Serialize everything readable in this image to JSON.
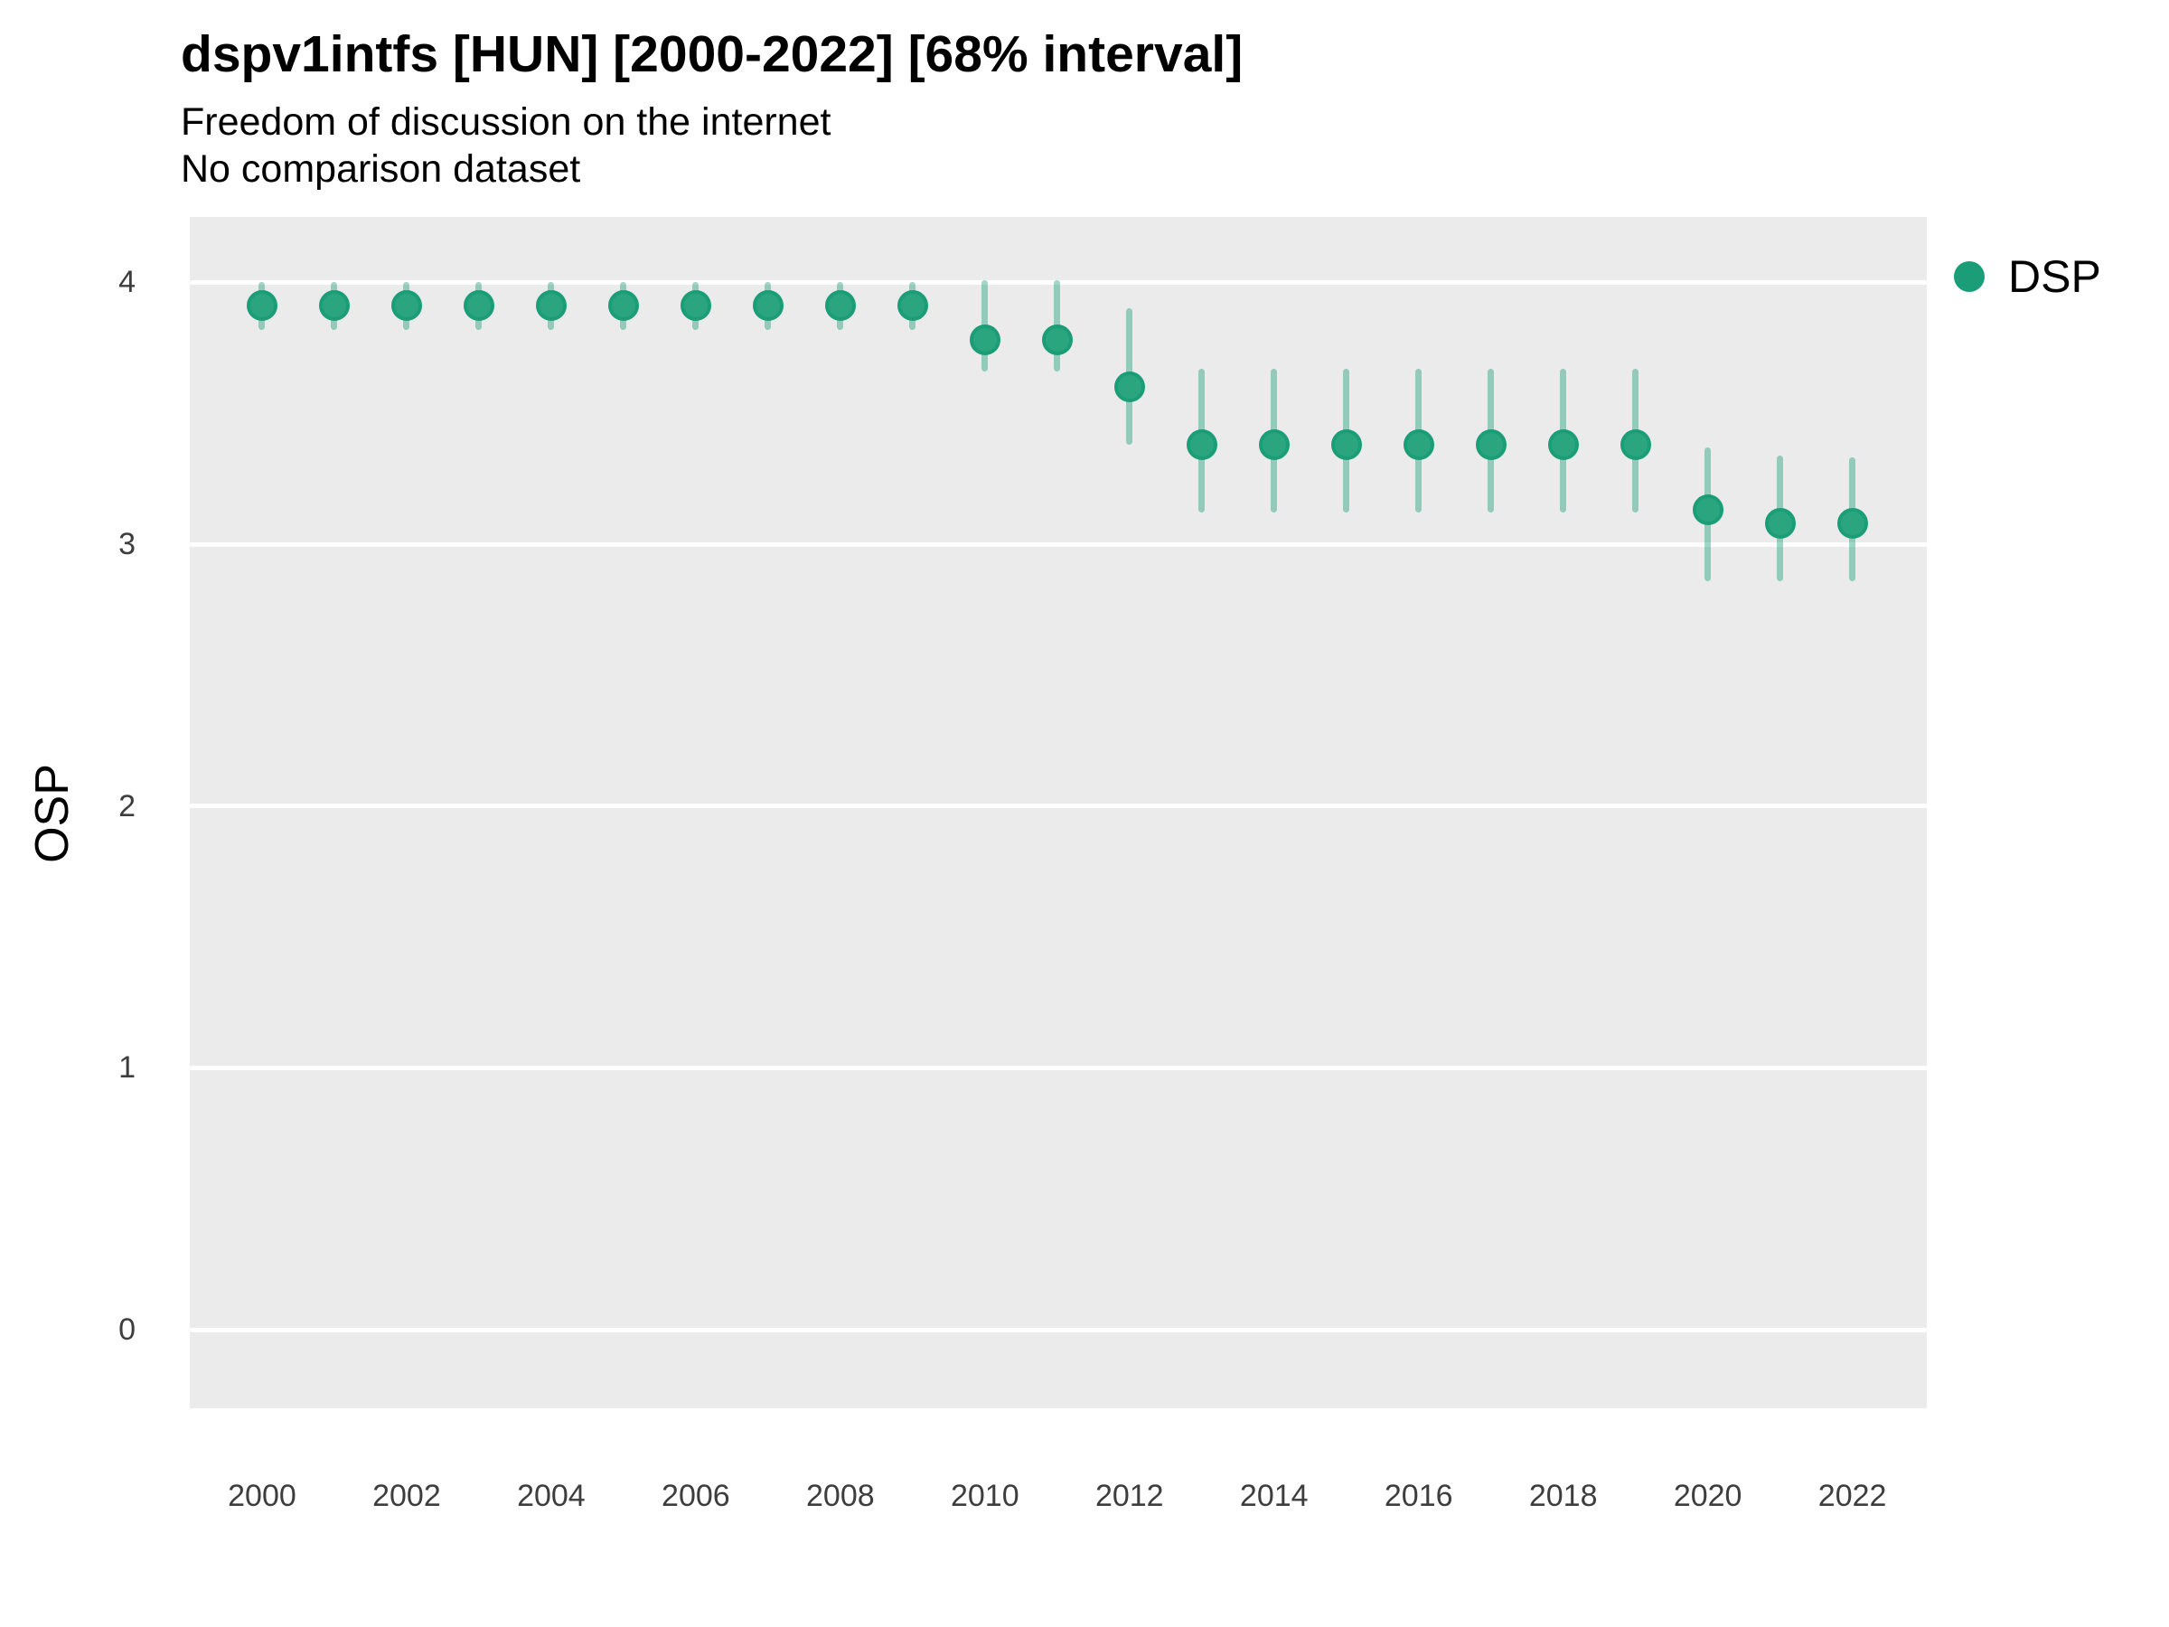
{
  "colors": {
    "panel_background": "#EBEBEB",
    "gridline": "#FFFFFF",
    "point_fill": "#2BA57E",
    "point_stroke": "#1B9E77",
    "errorbar": "rgba(27,158,119,0.42)",
    "tick_text": "#3D3D3D",
    "title_text": "#000000"
  },
  "chart_data": {
    "type": "scatter",
    "title": "dspv1intfs [HUN] [2000-2022] [68% interval]",
    "subtitle": "Freedom of discussion on the internet",
    "subtitle2": "No comparison dataset",
    "xlabel": "",
    "ylabel": "OSP",
    "interval": "68%",
    "legend_position": "right-top",
    "grid": "horizontal-major-only",
    "x_ticks": [
      2000,
      2002,
      2004,
      2006,
      2008,
      2010,
      2012,
      2014,
      2016,
      2018,
      2020,
      2022
    ],
    "y_ticks": [
      0,
      1,
      2,
      3,
      4
    ],
    "xlim": [
      1999,
      2023.03
    ],
    "ylim": [
      -0.3,
      4.25
    ],
    "series": [
      {
        "name": "DSP",
        "color": "#1B9E77",
        "x": [
          2000,
          2001,
          2002,
          2003,
          2004,
          2005,
          2006,
          2007,
          2008,
          2009,
          2010,
          2011,
          2012,
          2013,
          2014,
          2015,
          2016,
          2017,
          2018,
          2019,
          2020,
          2021,
          2022
        ],
        "y": [
          3.91,
          3.91,
          3.91,
          3.91,
          3.91,
          3.91,
          3.91,
          3.91,
          3.91,
          3.91,
          3.78,
          3.78,
          3.6,
          3.38,
          3.38,
          3.38,
          3.38,
          3.38,
          3.38,
          3.38,
          3.13,
          3.08,
          3.08
        ],
        "y_low": [
          3.82,
          3.82,
          3.82,
          3.82,
          3.82,
          3.82,
          3.82,
          3.82,
          3.82,
          3.82,
          3.66,
          3.66,
          3.38,
          3.12,
          3.12,
          3.12,
          3.12,
          3.12,
          3.12,
          3.12,
          2.86,
          2.86,
          2.86
        ],
        "y_high": [
          4.0,
          4.0,
          4.0,
          4.0,
          4.0,
          4.0,
          4.0,
          4.0,
          4.0,
          4.0,
          4.01,
          4.01,
          3.9,
          3.67,
          3.67,
          3.67,
          3.67,
          3.67,
          3.67,
          3.67,
          3.37,
          3.34,
          3.33
        ]
      }
    ]
  }
}
